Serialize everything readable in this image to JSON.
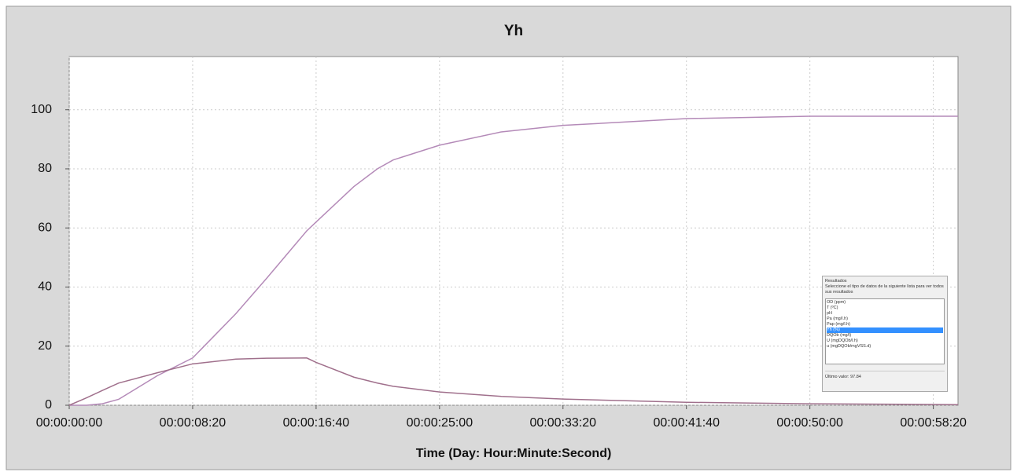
{
  "chart_data": {
    "type": "line",
    "title": "Yh",
    "x_label": "Time (Day: Hour:Minute:Second)",
    "x": [
      0,
      70,
      134,
      200,
      357,
      500,
      675,
      800,
      962,
      1000,
      1153,
      1248,
      1312,
      1500,
      1750,
      2000,
      2500,
      3000,
      3600
    ],
    "series": [
      {
        "color": "#b48ab8",
        "values": [
          0,
          0,
          0.5,
          2,
          10,
          16,
          31,
          43,
          59,
          62,
          74,
          80,
          83,
          88,
          92.5,
          94.7,
          97,
          97.8,
          97.8
        ]
      },
      {
        "color": "#a0708c",
        "values": [
          0,
          2.5,
          5,
          7.5,
          11,
          14,
          15.6,
          15.9,
          16,
          14.5,
          9.5,
          7.5,
          6.4,
          4.5,
          3,
          2.1,
          1,
          0.5,
          0.2
        ]
      }
    ],
    "xlim": [
      0,
      3600
    ],
    "xticks": [
      {
        "value": 0,
        "label": "00:00:00:00"
      },
      {
        "value": 500,
        "label": "00:00:08:20"
      },
      {
        "value": 1000,
        "label": "00:00:16:40"
      },
      {
        "value": 1500,
        "label": "00:00:25:00"
      },
      {
        "value": 2000,
        "label": "00:00:33:20"
      },
      {
        "value": 2500,
        "label": "00:00:41:40"
      },
      {
        "value": 3000,
        "label": "00:00:50:00"
      },
      {
        "value": 3500,
        "label": "00:00:58:20"
      }
    ],
    "ylim": [
      0,
      118
    ],
    "yticks": [
      0,
      20,
      40,
      60,
      80,
      100
    ],
    "grid": true
  },
  "inset": {
    "title": "Resultados",
    "instruction": "Seleccione el tipo de datos de la siguiente lista para ver todos sus resultados",
    "items": [
      "OD (ppm)",
      "T (ºC)",
      "pH",
      "Pa (mg/l.h)",
      "Pap (mg/l.h)",
      "Yh (%)",
      "DQOb (mg/l)",
      "U (mgDQOb/l.h)",
      "u (mgDQOb/mgVSS.d)"
    ],
    "selected": 5,
    "last_label": "Último valor:",
    "last_value": "97.84"
  }
}
